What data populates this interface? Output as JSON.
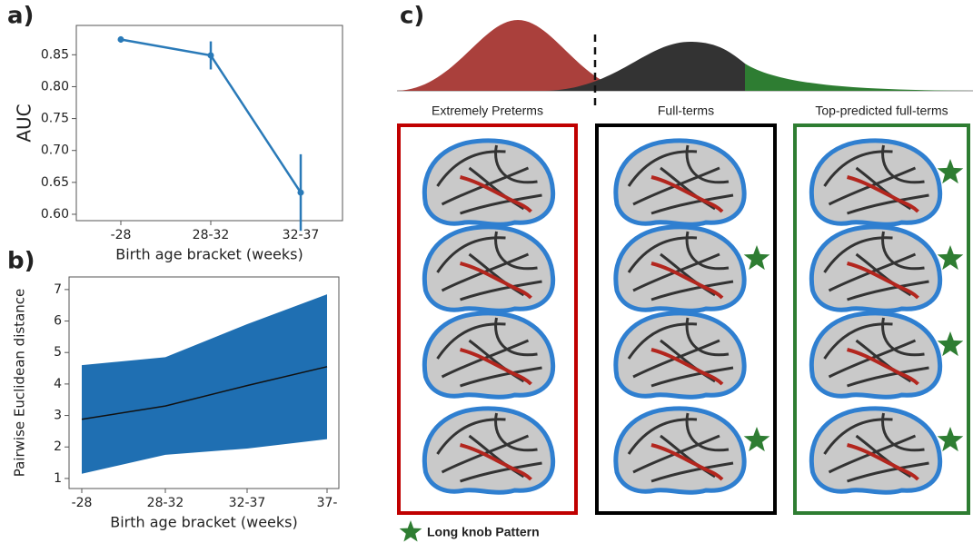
{
  "chart_data": [
    {
      "type": "line",
      "panel": "a)",
      "xlabel": "Birth age bracket (weeks)",
      "ylabel": "AUC",
      "categories": [
        "-28",
        "28-32",
        "32-37"
      ],
      "values": [
        0.874,
        0.849,
        0.634
      ],
      "errors": [
        0.005,
        0.022,
        0.06
      ],
      "color": "#2a7ab8",
      "ylim": [
        0.59,
        0.896
      ],
      "yticks": [
        {
          "value": 0.6,
          "label": "0.60"
        },
        0.65,
        {
          "value": 0.7,
          "label": "0.70"
        },
        0.75,
        {
          "value": 0.8,
          "label": "0.80"
        },
        0.85
      ]
    },
    {
      "type": "band",
      "panel": "b)",
      "xlabel": "Birth age bracket (weeks)",
      "ylabel": "Pairwise Euclidean distance",
      "categories": [
        "-28",
        "28-32",
        "32-37",
        "37-"
      ],
      "values": [
        2.88,
        3.3,
        3.95,
        4.55
      ],
      "lower": [
        1.15,
        1.75,
        1.95,
        2.25
      ],
      "upper": [
        4.6,
        4.85,
        5.9,
        6.85
      ],
      "color": "#1f6fb2",
      "line_color": "#111111",
      "ylim": [
        0.68,
        7.4
      ],
      "yticks": [
        1,
        2,
        3,
        4,
        5,
        6,
        7
      ]
    }
  ],
  "panel_c": {
    "panel": "c)",
    "legend": "Long knob Pattern",
    "groups": [
      {
        "label": "Extremely Preterms",
        "color": "#c00000",
        "stars": [
          false,
          false,
          false,
          false
        ]
      },
      {
        "label": "Full-terms",
        "color": "#000000",
        "stars": [
          false,
          true,
          false,
          true
        ]
      },
      {
        "label": "Top-predicted full-terms",
        "color": "#2e7d32",
        "stars": [
          true,
          true,
          true,
          true
        ]
      }
    ]
  }
}
